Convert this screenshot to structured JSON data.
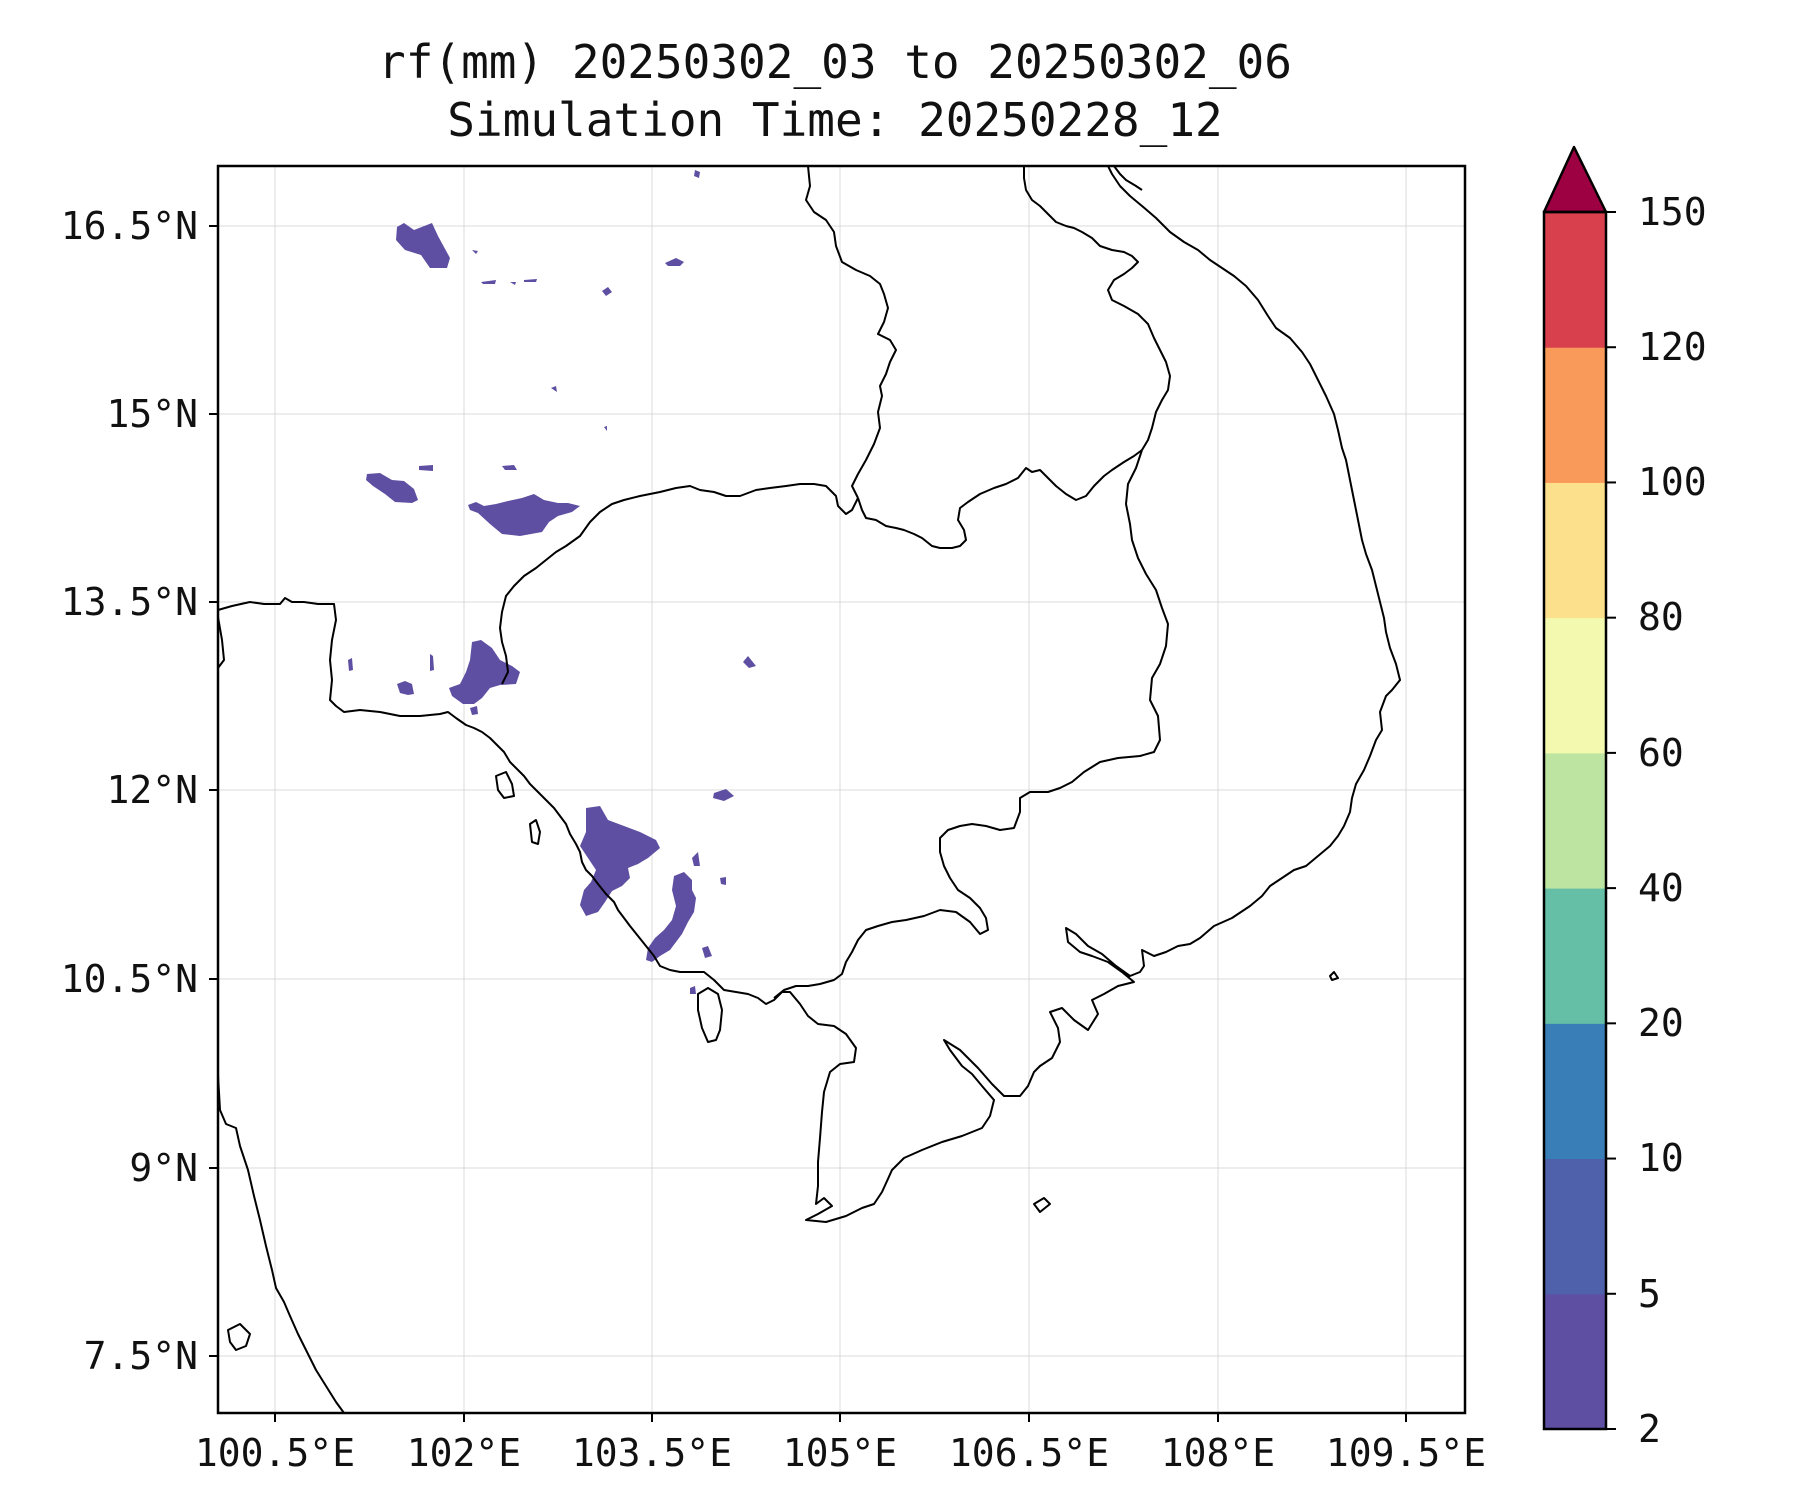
{
  "title": {
    "line1": "rf(mm) 20250302_03 to 20250302_06",
    "line2": "Simulation Time: 20250228_12"
  },
  "map_data": {
    "type": "precipitation_map",
    "variable": "rf(mm)",
    "lon_range": [
      100.5,
      109.5
    ],
    "lat_range": [
      7.5,
      16.5
    ],
    "lon_ticks": [
      "100.5°E",
      "102°E",
      "103.5°E",
      "105°E",
      "106.5°E",
      "108°E",
      "109.5°E"
    ],
    "lat_ticks": [
      "16.5°N",
      "15°N",
      "13.5°N",
      "12°N",
      "10.5°N",
      "9°N",
      "7.5°N"
    ],
    "grid": true,
    "precip_present_class": "2-5 mm"
  },
  "colorbar": {
    "labels": [
      "150",
      "120",
      "100",
      "80",
      "60",
      "40",
      "20",
      "10",
      "5",
      "2"
    ],
    "extend": "max",
    "colors": [
      "#5e4fa2",
      "#4f61aa",
      "#3a7eb8",
      "#64bfa6",
      "#bde5a1",
      "#f3fab0",
      "#fde08b",
      "#f99a5a",
      "#d8404d",
      "#9e0142"
    ]
  }
}
